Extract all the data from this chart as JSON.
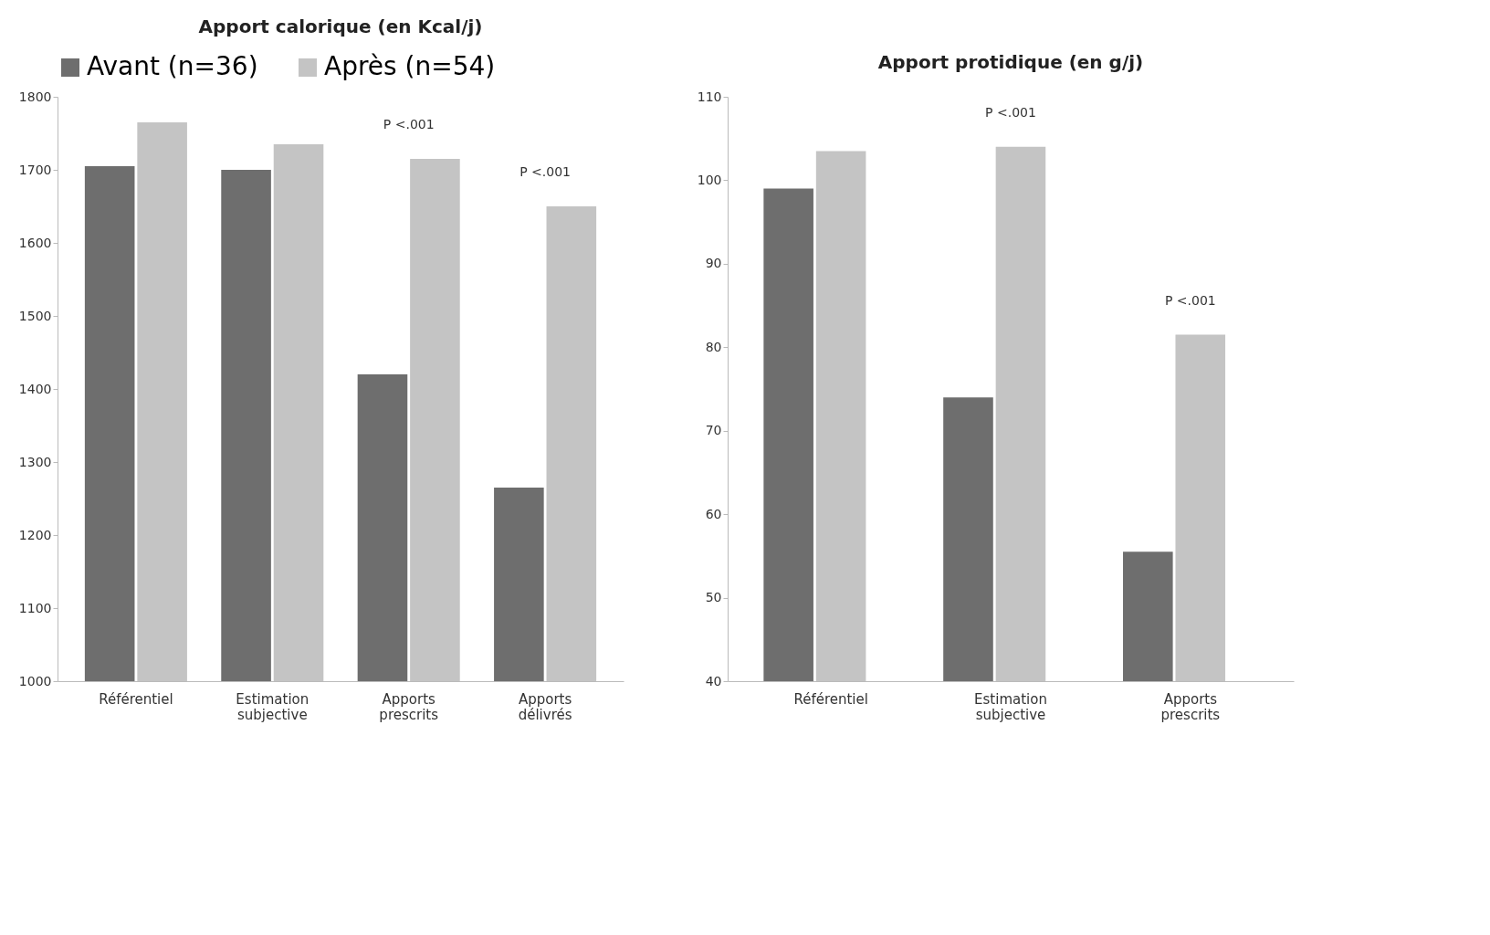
{
  "chart_data": [
    {
      "type": "bar",
      "title": "Apport calorique (en Kcal/j)",
      "categories": [
        "Référentiel",
        "Estimation subjective",
        "Apports prescrits",
        "Apports délivrés"
      ],
      "series": [
        {
          "name": "Avant (n=36)",
          "color": "#6e6e6e",
          "values": [
            1705,
            1700,
            1420,
            1265
          ]
        },
        {
          "name": "Après (n=54)",
          "color": "#c4c4c4",
          "values": [
            1765,
            1735,
            1715,
            1650
          ]
        }
      ],
      "ylim": [
        1000,
        1800
      ],
      "yticks": [
        1000,
        1100,
        1200,
        1300,
        1400,
        1500,
        1600,
        1700,
        1800
      ],
      "grid": false,
      "legend": "top",
      "annotations": [
        "P <.001",
        "P <.001"
      ]
    },
    {
      "type": "bar",
      "title": "Apport protidique (en g/j)",
      "categories": [
        "Référentiel",
        "Estimation subjective",
        "Apports prescrits"
      ],
      "series": [
        {
          "color": "#6e6e6e",
          "values": [
            99,
            74,
            55.5
          ]
        },
        {
          "color": "#c4c4c4",
          "values": [
            103.5,
            104,
            81.5
          ]
        }
      ],
      "ylim": [
        40,
        110
      ],
      "yticks": [
        40,
        50,
        60,
        70,
        80,
        90,
        100,
        110
      ],
      "grid": false,
      "annotations": [
        "P <.001",
        "P <.001"
      ]
    }
  ]
}
